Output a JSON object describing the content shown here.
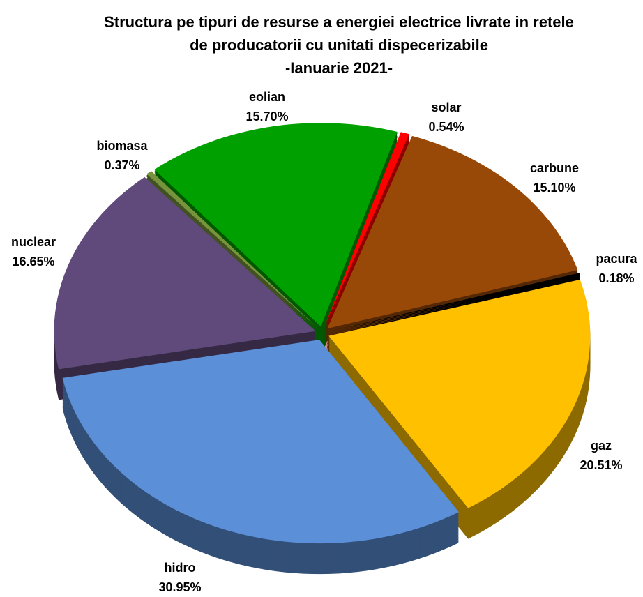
{
  "chart_data": {
    "type": "pie",
    "title": [
      "Structura pe tipuri de resurse a energiei electrice livrate in retele",
      "de producatorii cu unitati dispecerizabile"
    ],
    "subtitle": "-Ianuarie 2021-",
    "categories": [
      "solar",
      "carbune",
      "pacura",
      "gaz",
      "hidro",
      "nuclear",
      "biomasa",
      "eolian"
    ],
    "values": [
      0.54,
      15.1,
      0.18,
      20.51,
      30.95,
      16.65,
      0.37,
      15.7
    ],
    "value_labels": [
      "0.54%",
      "15.10%",
      "0.18%",
      "20.51%",
      "30.95%",
      "16.65%",
      "0.37%",
      "15.70%"
    ],
    "colors": [
      "#ff0000",
      "#984807",
      "#000000",
      "#ffc000",
      "#5b8fd8",
      "#604a7b",
      "#77933c",
      "#00a000"
    ]
  }
}
